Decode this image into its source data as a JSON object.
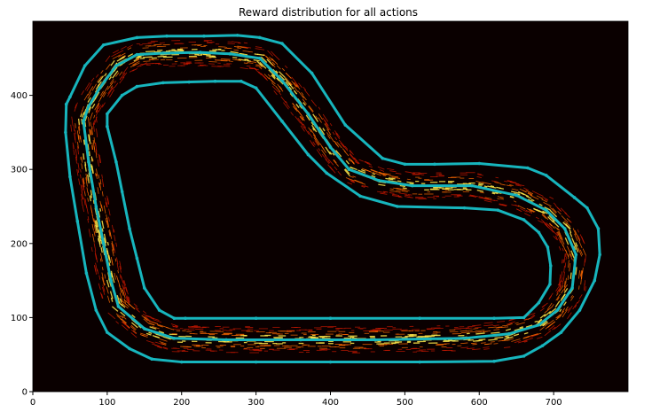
{
  "chart_data": {
    "type": "line",
    "title": "Reward distribution for all actions",
    "xlabel": "",
    "ylabel": "",
    "xlim": [
      0,
      800
    ],
    "ylim": [
      0,
      500
    ],
    "xticks": [
      0,
      100,
      200,
      300,
      400,
      500,
      600,
      700
    ],
    "yticks": [
      0,
      100,
      200,
      300,
      400
    ],
    "grid": false,
    "background_color": "#0a0000",
    "track_color": "#17b5bd",
    "reward_colors": [
      "#c81800",
      "#ff6a00",
      "#ffe84a"
    ],
    "series": [
      {
        "role": "outer-border",
        "points": [
          [
            45,
            388
          ],
          [
            50,
            398
          ],
          [
            70,
            440
          ],
          [
            95,
            468
          ],
          [
            140,
            478
          ],
          [
            180,
            480
          ],
          [
            230,
            480
          ],
          [
            275,
            481
          ],
          [
            305,
            478
          ],
          [
            335,
            470
          ],
          [
            375,
            430
          ],
          [
            420,
            360
          ],
          [
            470,
            315
          ],
          [
            500,
            307
          ],
          [
            540,
            307
          ],
          [
            600,
            308
          ],
          [
            665,
            302
          ],
          [
            690,
            292
          ],
          [
            728,
            262
          ],
          [
            745,
            248
          ],
          [
            760,
            220
          ],
          [
            762,
            185
          ],
          [
            755,
            150
          ],
          [
            735,
            110
          ],
          [
            710,
            80
          ],
          [
            685,
            62
          ],
          [
            660,
            48
          ],
          [
            620,
            41
          ],
          [
            520,
            40
          ],
          [
            400,
            40
          ],
          [
            300,
            40
          ],
          [
            200,
            40
          ],
          [
            160,
            44
          ],
          [
            130,
            58
          ],
          [
            100,
            80
          ],
          [
            85,
            110
          ],
          [
            72,
            160
          ],
          [
            60,
            230
          ],
          [
            50,
            290
          ],
          [
            44,
            350
          ],
          [
            45,
            388
          ]
        ]
      },
      {
        "role": "center-line",
        "points": [
          [
            68,
            365
          ],
          [
            75,
            385
          ],
          [
            90,
            410
          ],
          [
            112,
            440
          ],
          [
            140,
            455
          ],
          [
            175,
            457
          ],
          [
            225,
            458
          ],
          [
            265,
            456
          ],
          [
            305,
            450
          ],
          [
            335,
            420
          ],
          [
            370,
            375
          ],
          [
            400,
            330
          ],
          [
            425,
            300
          ],
          [
            465,
            285
          ],
          [
            510,
            278
          ],
          [
            590,
            278
          ],
          [
            650,
            265
          ],
          [
            690,
            245
          ],
          [
            715,
            220
          ],
          [
            730,
            185
          ],
          [
            725,
            140
          ],
          [
            705,
            110
          ],
          [
            680,
            90
          ],
          [
            640,
            78
          ],
          [
            580,
            72
          ],
          [
            460,
            70
          ],
          [
            360,
            70
          ],
          [
            260,
            70
          ],
          [
            190,
            72
          ],
          [
            150,
            85
          ],
          [
            115,
            115
          ],
          [
            105,
            150
          ],
          [
            95,
            200
          ],
          [
            85,
            250
          ],
          [
            75,
            310
          ],
          [
            68,
            365
          ]
        ]
      },
      {
        "role": "inner-border",
        "points": [
          [
            100,
            358
          ],
          [
            100,
            375
          ],
          [
            120,
            400
          ],
          [
            140,
            412
          ],
          [
            175,
            417
          ],
          [
            210,
            418
          ],
          [
            245,
            419
          ],
          [
            280,
            419
          ],
          [
            300,
            410
          ],
          [
            335,
            365
          ],
          [
            370,
            320
          ],
          [
            395,
            295
          ],
          [
            440,
            264
          ],
          [
            490,
            250
          ],
          [
            580,
            248
          ],
          [
            625,
            245
          ],
          [
            660,
            232
          ],
          [
            680,
            215
          ],
          [
            692,
            195
          ],
          [
            696,
            170
          ],
          [
            695,
            145
          ],
          [
            680,
            120
          ],
          [
            660,
            100
          ],
          [
            620,
            99
          ],
          [
            520,
            99
          ],
          [
            400,
            99
          ],
          [
            300,
            99
          ],
          [
            205,
            99
          ],
          [
            190,
            99
          ],
          [
            170,
            110
          ],
          [
            150,
            140
          ],
          [
            140,
            180
          ],
          [
            130,
            220
          ],
          [
            120,
            270
          ],
          [
            112,
            310
          ],
          [
            100,
            358
          ]
        ]
      }
    ]
  }
}
